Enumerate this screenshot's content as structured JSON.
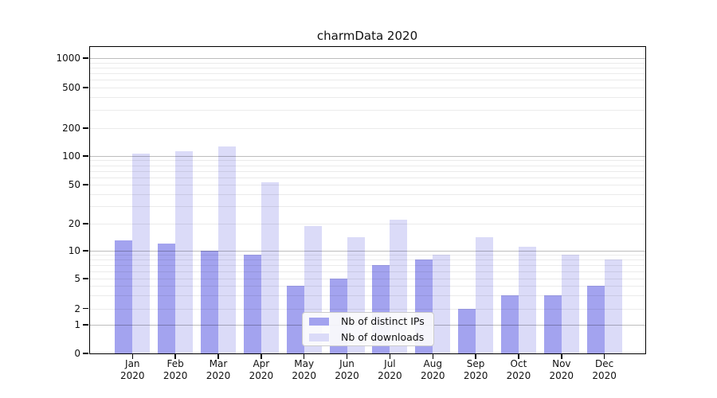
{
  "title": "charmData 2020",
  "chart_data": {
    "type": "bar",
    "title": "charmData 2020",
    "categories": [
      "Jan",
      "Feb",
      "Mar",
      "Apr",
      "May",
      "Jun",
      "Jul",
      "Aug",
      "Sep",
      "Oct",
      "Nov",
      "Dec"
    ],
    "year": "2020",
    "series": [
      {
        "name": "Nb of distinct IPs",
        "color": "#a3a3ef",
        "values": [
          13,
          12,
          10,
          9,
          4,
          5,
          7,
          8,
          2,
          3,
          3,
          4
        ]
      },
      {
        "name": "Nb of downloads",
        "color": "#dbdbf8",
        "values": [
          107,
          112,
          128,
          53,
          19,
          14,
          22,
          9,
          14,
          11,
          9,
          8
        ]
      }
    ],
    "xlabel": "",
    "ylabel": "",
    "yscale": "symlog",
    "yticks": [
      0,
      1,
      2,
      5,
      10,
      20,
      50,
      100,
      200,
      500,
      1000
    ],
    "ylim": [
      0,
      1380
    ],
    "grid": "on",
    "legend_position": "lower center"
  }
}
